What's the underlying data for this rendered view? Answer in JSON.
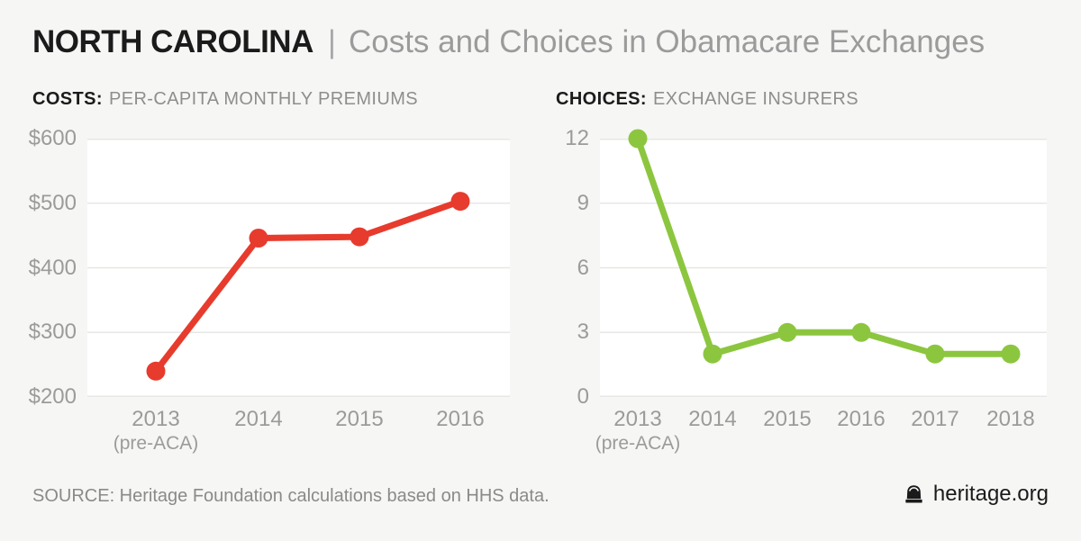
{
  "header": {
    "region": "NORTH CAROLINA",
    "divider": "|",
    "title": "Costs and Choices in Obamacare Exchanges"
  },
  "footer": {
    "source": "SOURCE: Heritage Foundation calculations based on HHS data.",
    "brand": "heritage.org"
  },
  "icons": {
    "brand_icon": "liberty-bell-icon"
  },
  "colors": {
    "background": "#F6F6F5",
    "plot_background": "#FFFFFF",
    "gridline": "#E7E7E6",
    "costs_line": "#E73B2D",
    "choices_line": "#8CC63F",
    "title_black": "#1B1B1B",
    "title_gray": "#9B9B9B",
    "axis_label_gray": "#9B9B9A"
  },
  "chart_data": [
    {
      "id": "costs",
      "type": "line",
      "heading_bold": "COSTS:",
      "heading_rest": "PER-CAPITA MONTHLY PREMIUMS",
      "categories": [
        "2013",
        "2014",
        "2015",
        "2016"
      ],
      "category_note": {
        "index": 0,
        "text": "(pre-ACA)"
      },
      "values": [
        240,
        446,
        448,
        503
      ],
      "ylim": [
        200,
        600
      ],
      "y_ticks": [
        600,
        500,
        400,
        300,
        200
      ],
      "y_tick_labels": [
        "$600",
        "$500",
        "$400",
        "$300",
        "$200"
      ],
      "line_color": "#E73B2D",
      "grid": true,
      "legend": false,
      "xlabel": "",
      "ylabel": ""
    },
    {
      "id": "choices",
      "type": "line",
      "heading_bold": "CHOICES:",
      "heading_rest": "EXCHANGE INSURERS",
      "categories": [
        "2013",
        "2014",
        "2015",
        "2016",
        "2017",
        "2018"
      ],
      "category_note": {
        "index": 0,
        "text": "(pre-ACA)"
      },
      "values": [
        12,
        2,
        3,
        3,
        2,
        2
      ],
      "ylim": [
        0,
        12
      ],
      "y_ticks": [
        12,
        9,
        6,
        3,
        0
      ],
      "y_tick_labels": [
        "12",
        "9",
        "6",
        "3",
        "0"
      ],
      "line_color": "#8CC63F",
      "grid": true,
      "legend": false,
      "xlabel": "",
      "ylabel": ""
    }
  ]
}
